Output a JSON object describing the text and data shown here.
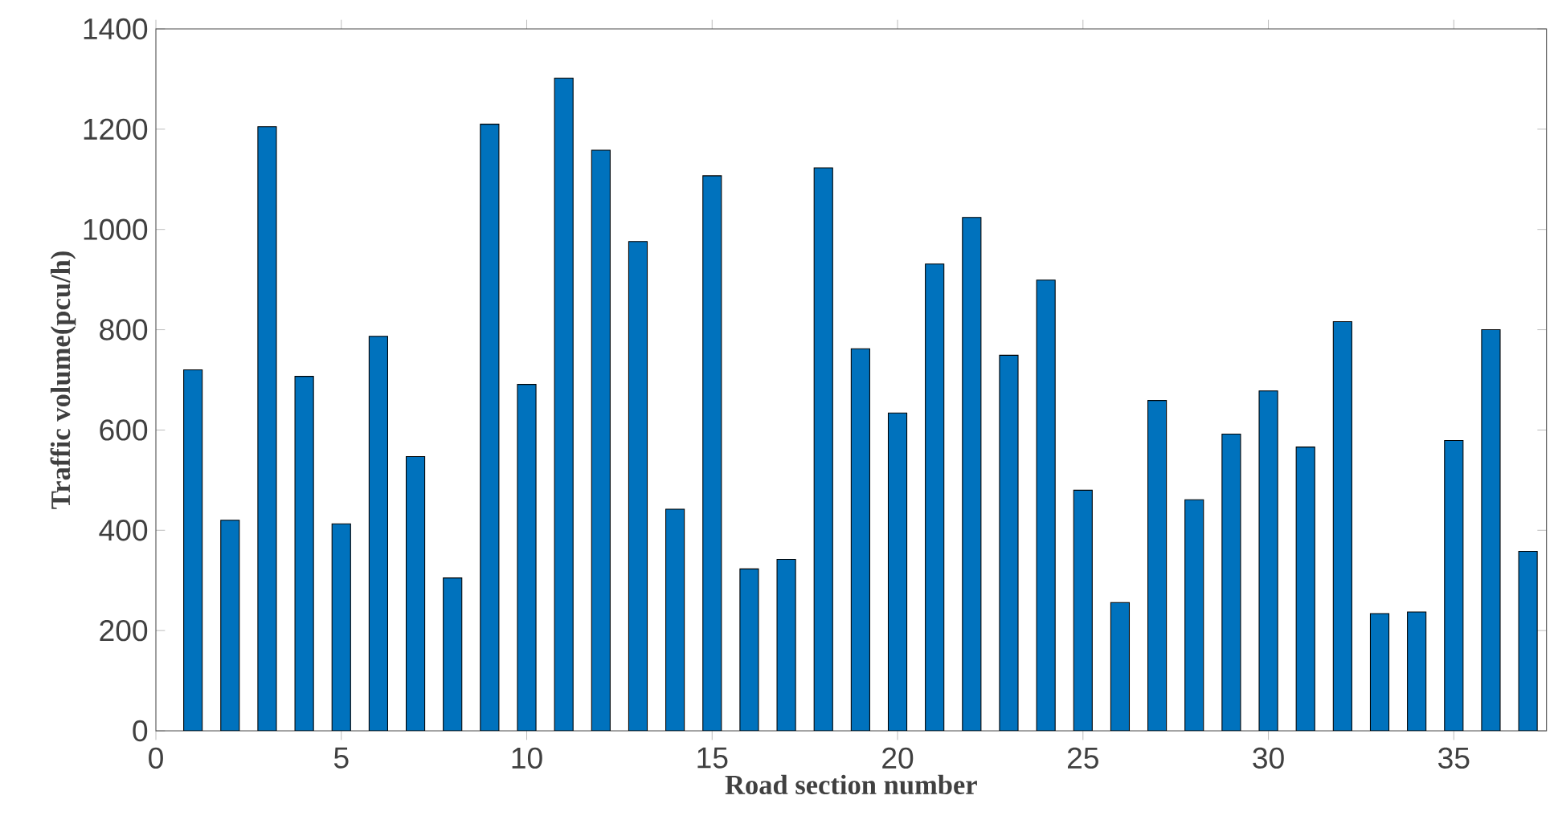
{
  "chart_data": {
    "type": "bar",
    "xlabel": "Road section number",
    "ylabel": "Traffic volume(pcu/h)",
    "x": [
      1,
      2,
      3,
      4,
      5,
      6,
      7,
      8,
      9,
      10,
      11,
      12,
      13,
      14,
      15,
      16,
      17,
      18,
      19,
      20,
      21,
      22,
      23,
      24,
      25,
      26,
      27,
      28,
      29,
      30,
      31,
      32,
      33,
      34,
      35,
      36,
      37
    ],
    "values": [
      720,
      420,
      1205,
      707,
      413,
      787,
      547,
      305,
      1210,
      691,
      1302,
      1158,
      976,
      442,
      1107,
      323,
      342,
      1123,
      762,
      634,
      931,
      1024,
      749,
      899,
      480,
      256,
      659,
      461,
      592,
      678,
      566,
      816,
      234,
      237,
      579,
      800,
      358
    ],
    "color": "#0072bd",
    "xlim": [
      0,
      37.5
    ],
    "ylim": [
      0,
      1400
    ],
    "xticks": [
      0,
      5,
      10,
      15,
      20,
      25,
      30,
      35
    ],
    "yticks": [
      0,
      200,
      400,
      600,
      800,
      1000,
      1200,
      1400
    ]
  }
}
